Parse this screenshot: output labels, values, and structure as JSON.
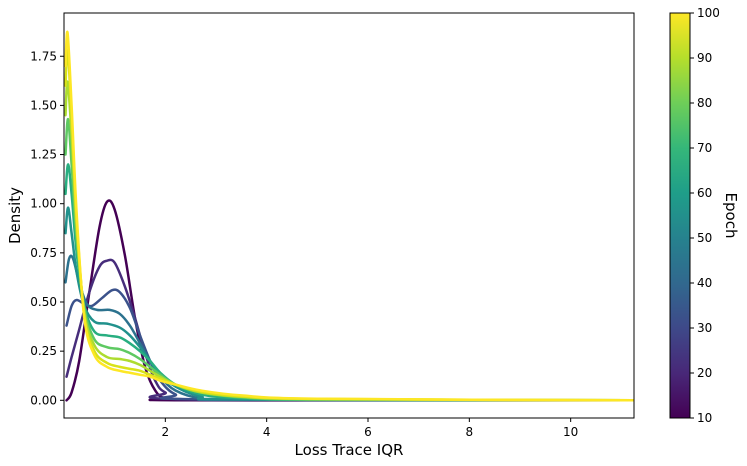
{
  "chart_data": {
    "type": "line",
    "title": "",
    "xlabel": "Loss Trace IQR",
    "ylabel": "Density",
    "xlim": [
      0,
      11.25
    ],
    "ylim": [
      -0.09,
      1.97
    ],
    "x_ticks": [
      2,
      4,
      6,
      8,
      10
    ],
    "y_ticks": [
      0.0,
      0.25,
      0.5,
      0.75,
      1.0,
      1.25,
      1.5,
      1.75
    ],
    "y_tick_labels": [
      "0.00",
      "0.25",
      "0.50",
      "0.75",
      "1.00",
      "1.25",
      "1.50",
      "1.75"
    ],
    "grid": false,
    "colorbar": {
      "label": "Epoch",
      "range": [
        10,
        100
      ],
      "ticks": [
        10,
        20,
        30,
        40,
        50,
        60,
        70,
        80,
        90,
        100
      ],
      "colormap": "viridis",
      "stops": [
        "#440154",
        "#482878",
        "#3e4989",
        "#31688e",
        "#26828e",
        "#1f9e89",
        "#35b779",
        "#6ece58",
        "#b5de2b",
        "#fde725"
      ]
    },
    "series": [
      {
        "epoch": 10,
        "color": "#440154",
        "points": [
          [
            0.05,
            0.0
          ],
          [
            0.15,
            0.04
          ],
          [
            0.3,
            0.2
          ],
          [
            0.5,
            0.55
          ],
          [
            0.7,
            0.88
          ],
          [
            0.85,
            1.01
          ],
          [
            1.0,
            0.97
          ],
          [
            1.2,
            0.74
          ],
          [
            1.4,
            0.42
          ],
          [
            1.6,
            0.17
          ],
          [
            1.8,
            0.05
          ],
          [
            2.0,
            0.01
          ],
          [
            2.5,
            0.0
          ],
          [
            11.25,
            0.0
          ]
        ]
      },
      {
        "epoch": 20,
        "color": "#472d7b",
        "points": [
          [
            0.05,
            0.12
          ],
          [
            0.15,
            0.22
          ],
          [
            0.3,
            0.36
          ],
          [
            0.5,
            0.55
          ],
          [
            0.7,
            0.68
          ],
          [
            0.85,
            0.71
          ],
          [
            1.0,
            0.7
          ],
          [
            1.2,
            0.58
          ],
          [
            1.4,
            0.42
          ],
          [
            1.6,
            0.24
          ],
          [
            1.8,
            0.1
          ],
          [
            2.0,
            0.04
          ],
          [
            2.5,
            0.005
          ],
          [
            11.25,
            0.0
          ]
        ]
      },
      {
        "epoch": 30,
        "color": "#3b528b",
        "points": [
          [
            0.05,
            0.38
          ],
          [
            0.15,
            0.48
          ],
          [
            0.25,
            0.51
          ],
          [
            0.4,
            0.49
          ],
          [
            0.55,
            0.48
          ],
          [
            0.75,
            0.52
          ],
          [
            0.95,
            0.56
          ],
          [
            1.1,
            0.55
          ],
          [
            1.3,
            0.47
          ],
          [
            1.5,
            0.33
          ],
          [
            1.7,
            0.2
          ],
          [
            1.9,
            0.1
          ],
          [
            2.2,
            0.03
          ],
          [
            2.7,
            0.005
          ],
          [
            11.25,
            0.0
          ]
        ]
      },
      {
        "epoch": 40,
        "color": "#2c728e",
        "points": [
          [
            0.03,
            0.6
          ],
          [
            0.1,
            0.72
          ],
          [
            0.18,
            0.72
          ],
          [
            0.3,
            0.6
          ],
          [
            0.45,
            0.49
          ],
          [
            0.65,
            0.46
          ],
          [
            0.9,
            0.46
          ],
          [
            1.1,
            0.44
          ],
          [
            1.3,
            0.38
          ],
          [
            1.5,
            0.29
          ],
          [
            1.7,
            0.2
          ],
          [
            1.9,
            0.12
          ],
          [
            2.2,
            0.05
          ],
          [
            2.7,
            0.01
          ],
          [
            3.5,
            0.002
          ],
          [
            11.25,
            0.0
          ]
        ]
      },
      {
        "epoch": 50,
        "color": "#21918c",
        "points": [
          [
            0.03,
            0.85
          ],
          [
            0.08,
            0.98
          ],
          [
            0.15,
            0.85
          ],
          [
            0.25,
            0.65
          ],
          [
            0.4,
            0.48
          ],
          [
            0.6,
            0.4
          ],
          [
            0.85,
            0.39
          ],
          [
            1.1,
            0.37
          ],
          [
            1.3,
            0.33
          ],
          [
            1.5,
            0.27
          ],
          [
            1.7,
            0.2
          ],
          [
            1.9,
            0.13
          ],
          [
            2.2,
            0.07
          ],
          [
            2.7,
            0.02
          ],
          [
            3.5,
            0.005
          ],
          [
            11.25,
            0.0
          ]
        ]
      },
      {
        "epoch": 60,
        "color": "#28ae80",
        "points": [
          [
            0.03,
            1.05
          ],
          [
            0.08,
            1.2
          ],
          [
            0.15,
            1.05
          ],
          [
            0.25,
            0.75
          ],
          [
            0.4,
            0.48
          ],
          [
            0.6,
            0.35
          ],
          [
            0.85,
            0.33
          ],
          [
            1.1,
            0.32
          ],
          [
            1.3,
            0.29
          ],
          [
            1.5,
            0.25
          ],
          [
            1.7,
            0.2
          ],
          [
            1.9,
            0.14
          ],
          [
            2.2,
            0.08
          ],
          [
            2.7,
            0.03
          ],
          [
            3.5,
            0.01
          ],
          [
            5.0,
            0.002
          ],
          [
            11.25,
            0.0
          ]
        ]
      },
      {
        "epoch": 70,
        "color": "#5ec962",
        "points": [
          [
            0.03,
            1.25
          ],
          [
            0.08,
            1.43
          ],
          [
            0.15,
            1.2
          ],
          [
            0.25,
            0.82
          ],
          [
            0.4,
            0.47
          ],
          [
            0.6,
            0.31
          ],
          [
            0.85,
            0.27
          ],
          [
            1.1,
            0.26
          ],
          [
            1.3,
            0.24
          ],
          [
            1.5,
            0.21
          ],
          [
            1.7,
            0.17
          ],
          [
            1.9,
            0.13
          ],
          [
            2.2,
            0.08
          ],
          [
            2.7,
            0.04
          ],
          [
            3.5,
            0.015
          ],
          [
            5.0,
            0.004
          ],
          [
            11.25,
            0.0
          ]
        ]
      },
      {
        "epoch": 80,
        "color": "#addc30",
        "points": [
          [
            0.03,
            1.45
          ],
          [
            0.07,
            1.62
          ],
          [
            0.15,
            1.35
          ],
          [
            0.25,
            0.88
          ],
          [
            0.4,
            0.45
          ],
          [
            0.6,
            0.28
          ],
          [
            0.85,
            0.22
          ],
          [
            1.1,
            0.21
          ],
          [
            1.3,
            0.2
          ],
          [
            1.5,
            0.18
          ],
          [
            1.7,
            0.15
          ],
          [
            1.9,
            0.12
          ],
          [
            2.2,
            0.08
          ],
          [
            2.7,
            0.04
          ],
          [
            3.5,
            0.018
          ],
          [
            5.0,
            0.006
          ],
          [
            11.25,
            0.0
          ]
        ]
      },
      {
        "epoch": 90,
        "color": "#d8e219",
        "points": [
          [
            0.03,
            1.6
          ],
          [
            0.07,
            1.78
          ],
          [
            0.15,
            1.45
          ],
          [
            0.25,
            0.92
          ],
          [
            0.4,
            0.43
          ],
          [
            0.6,
            0.25
          ],
          [
            0.85,
            0.19
          ],
          [
            1.1,
            0.17
          ],
          [
            1.3,
            0.16
          ],
          [
            1.5,
            0.15
          ],
          [
            1.7,
            0.13
          ],
          [
            1.9,
            0.11
          ],
          [
            2.2,
            0.08
          ],
          [
            2.7,
            0.045
          ],
          [
            3.5,
            0.02
          ],
          [
            5.0,
            0.007
          ],
          [
            11.25,
            0.0
          ]
        ]
      },
      {
        "epoch": 100,
        "color": "#fde725",
        "points": [
          [
            0.03,
            1.7
          ],
          [
            0.07,
            1.87
          ],
          [
            0.15,
            1.5
          ],
          [
            0.25,
            0.95
          ],
          [
            0.4,
            0.42
          ],
          [
            0.6,
            0.23
          ],
          [
            0.85,
            0.17
          ],
          [
            1.1,
            0.15
          ],
          [
            1.3,
            0.14
          ],
          [
            1.5,
            0.13
          ],
          [
            1.7,
            0.12
          ],
          [
            1.9,
            0.1
          ],
          [
            2.2,
            0.08
          ],
          [
            2.7,
            0.05
          ],
          [
            3.5,
            0.025
          ],
          [
            5.0,
            0.008
          ],
          [
            11.25,
            0.0
          ]
        ]
      }
    ]
  }
}
